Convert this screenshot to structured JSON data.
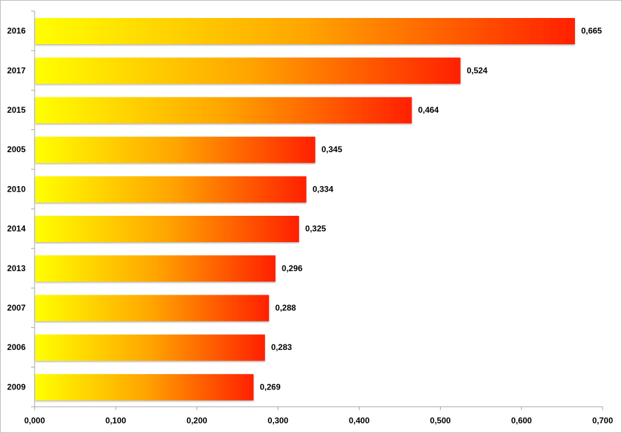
{
  "chart_data": {
    "type": "bar",
    "orientation": "horizontal",
    "title": "",
    "xlabel": "",
    "ylabel": "",
    "categories": [
      "2016",
      "2017",
      "2015",
      "2005",
      "2010",
      "2014",
      "2013",
      "2007",
      "2006",
      "2009"
    ],
    "values": [
      0.665,
      0.524,
      0.464,
      0.345,
      0.334,
      0.325,
      0.296,
      0.288,
      0.283,
      0.269
    ],
    "data_labels": [
      "0,665",
      "0,524",
      "0,464",
      "0,345",
      "0,334",
      "0,325",
      "0,296",
      "0,288",
      "0,283",
      "0,269"
    ],
    "xlim": [
      0,
      0.7
    ],
    "x_ticks": [
      0,
      0.1,
      0.2,
      0.3,
      0.4,
      0.5,
      0.6,
      0.7
    ],
    "x_tick_labels": [
      "0,000",
      "0,100",
      "0,200",
      "0,300",
      "0,400",
      "0,500",
      "0,600",
      "0,700"
    ],
    "grid": false,
    "legend": "none",
    "colors": {
      "gradient_start": "#ffff00",
      "gradient_mid": "#ffa500",
      "gradient_end": "#ff2000",
      "axis": "#a6a6a6"
    }
  }
}
